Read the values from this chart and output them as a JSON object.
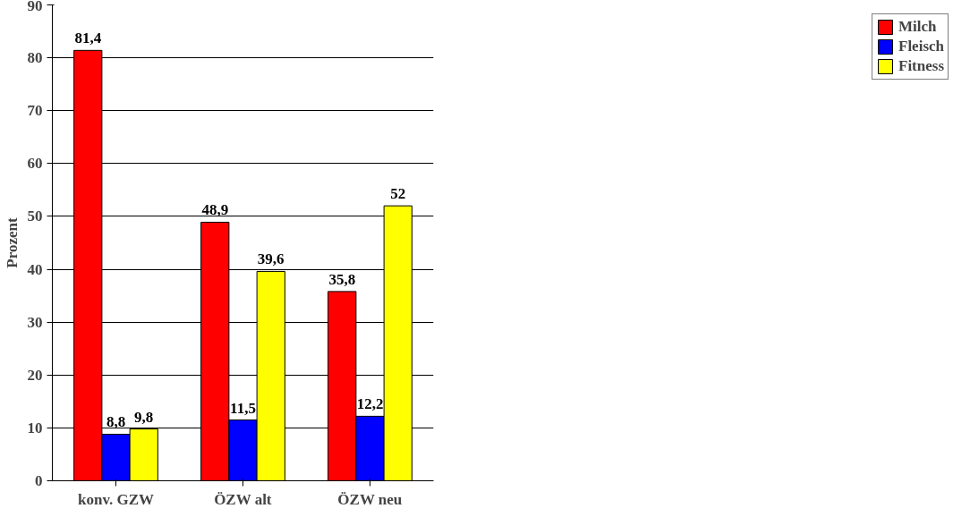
{
  "chart_data": {
    "type": "bar",
    "ylabel": "Prozent",
    "categories": [
      "konv. GZW",
      "ÖZW alt",
      "ÖZW neu"
    ],
    "series": [
      {
        "name": "Milch",
        "color": "#ff0000",
        "values": [
          81.4,
          48.9,
          35.8
        ],
        "value_labels": [
          "81,4",
          "48,9",
          "35,8"
        ]
      },
      {
        "name": "Fleisch",
        "color": "#0000ff",
        "values": [
          8.8,
          11.5,
          12.2
        ],
        "value_labels": [
          "8,8",
          "11,5",
          "12,2"
        ]
      },
      {
        "name": "Fitness",
        "color": "#ffff00",
        "values": [
          9.8,
          39.6,
          52
        ],
        "value_labels": [
          "9,8",
          "39,6",
          "52"
        ]
      }
    ],
    "ylim": [
      0,
      90
    ],
    "yticks": [
      0,
      10,
      20,
      30,
      40,
      50,
      60,
      70,
      80,
      90
    ],
    "grid": "y",
    "legend": "right"
  }
}
